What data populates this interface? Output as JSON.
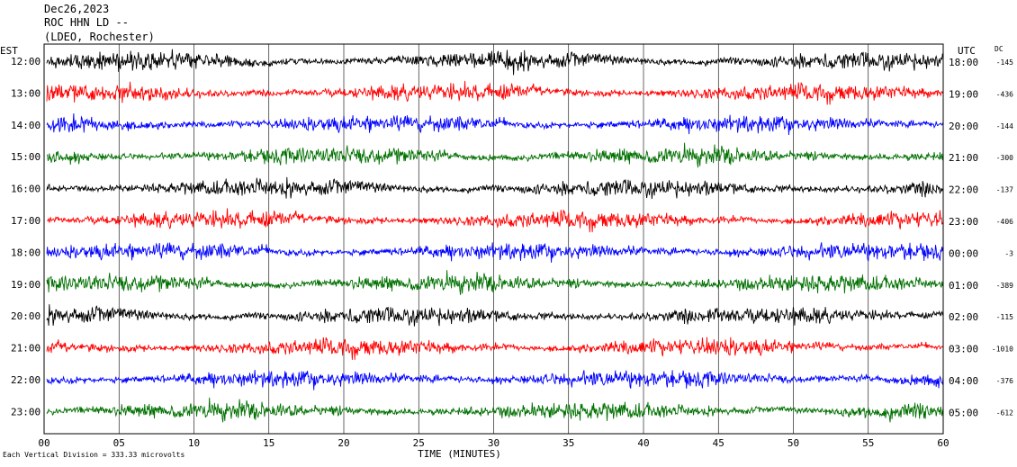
{
  "header": {
    "date": "Dec26,2023",
    "station": "ROC HHN LD --",
    "network": "(LDEO, Rochester)"
  },
  "chart_data": {
    "type": "line",
    "title": "ROC HHN LD --",
    "left_axis_label": "EST",
    "right_axis_label": "UTC",
    "dc_label": "DC",
    "xlabel": "TIME (MINUTES)",
    "xlim": [
      0,
      60
    ],
    "x_ticks": [
      "00",
      "05",
      "10",
      "15",
      "20",
      "25",
      "30",
      "35",
      "40",
      "45",
      "50",
      "55",
      "60"
    ],
    "rows_est": [
      "12:00",
      "13:00",
      "14:00",
      "15:00",
      "16:00",
      "17:00",
      "18:00",
      "19:00",
      "20:00",
      "21:00",
      "22:00",
      "23:00"
    ],
    "rows_utc": [
      "18:00",
      "19:00",
      "20:00",
      "21:00",
      "22:00",
      "23:00",
      "00:00",
      "01:00",
      "02:00",
      "03:00",
      "04:00",
      "05:00"
    ],
    "dc_offsets": [
      "-145",
      "-436",
      "-144",
      "-300",
      "-137",
      "-406",
      "-3",
      "-389",
      "-115",
      "-1010",
      "-376",
      "-612"
    ],
    "trace_colors": [
      "#000000",
      "#ff0000",
      "#0000ff",
      "#007000"
    ],
    "scale_note": "Each Vertical Division =  333.33 microvolts",
    "grid": "vertical-every-5-minutes"
  }
}
